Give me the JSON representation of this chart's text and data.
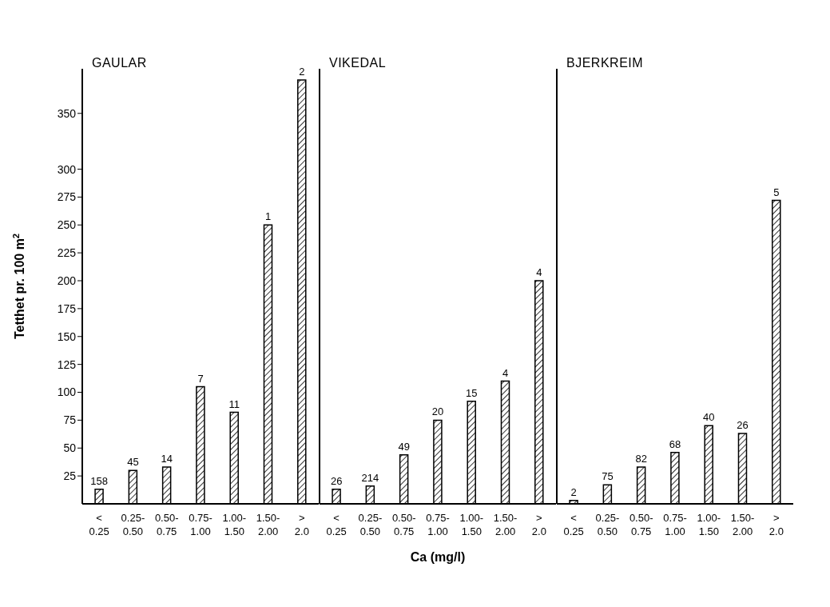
{
  "chart_data": [
    {
      "type": "bar",
      "title": "GAULAR",
      "ylabel": "Tetthet pr. 100 m$^{2}$",
      "categories": [
        "< 0.25",
        "0.25- 0.50",
        "0.50- 0.75",
        "0.75- 1.00",
        "1.00- 1.50",
        "1.50- 2.00",
        "> 2.0"
      ],
      "values": [
        13,
        30,
        33,
        105,
        82,
        250,
        380
      ],
      "color": "#000000",
      "ylim": [
        0,
        390
      ],
      "yticks": [
        25,
        50,
        75,
        100,
        125,
        150,
        175,
        200,
        225,
        250,
        275,
        300,
        350
      ],
      "annotations": [
        {
          "text": "158",
          "x": "< 0.25",
          "y": 13
        },
        {
          "text": "45",
          "x": "0.25- 0.50",
          "y": 30
        },
        {
          "text": "14",
          "x": "0.50- 0.75",
          "y": 33
        },
        {
          "text": "7",
          "x": "0.75- 1.00",
          "y": 105
        },
        {
          "text": "11",
          "x": "1.00- 1.50",
          "y": 82
        },
        {
          "text": "1",
          "x": "1.50- 2.00",
          "y": 250
        },
        {
          "text": "2",
          "x": "> 2.0",
          "y": 380
        }
      ]
    },
    {
      "type": "bar",
      "title": "VIKEDAL",
      "xlabel": "Ca (mg/l)",
      "categories": [
        "< 0.25",
        "0.25- 0.50",
        "0.50- 0.75",
        "0.75- 1.00",
        "1.00- 1.50",
        "1.50- 2.00",
        "> 2.0"
      ],
      "values": [
        13,
        16,
        44,
        75,
        92,
        110,
        200
      ],
      "color": "#000000",
      "ylim": [
        0,
        390
      ],
      "tick_labels": "x",
      "annotations": [
        {
          "text": "26",
          "x": "< 0.25",
          "y": 13
        },
        {
          "text": "214",
          "x": "0.25- 0.50",
          "y": 16
        },
        {
          "text": "49",
          "x": "0.50- 0.75",
          "y": 44
        },
        {
          "text": "20",
          "x": "0.75- 1.00",
          "y": 75
        },
        {
          "text": "15",
          "x": "1.00- 1.50",
          "y": 92
        },
        {
          "text": "4",
          "x": "1.50- 2.00",
          "y": 110
        },
        {
          "text": "4",
          "x": "> 2.0",
          "y": 200
        }
      ]
    },
    {
      "type": "bar",
      "title": "BJERKREIM",
      "categories": [
        "< 0.25",
        "0.25- 0.50",
        "0.50- 0.75",
        "0.75- 1.00",
        "1.00- 1.50",
        "1.50- 2.00",
        "> 2.0"
      ],
      "values": [
        3,
        17,
        33,
        46,
        70,
        63,
        272
      ],
      "color": "#000000",
      "ylim": [
        0,
        390
      ],
      "tick_labels": "x",
      "annotations": [
        {
          "text": "2",
          "x": "< 0.25",
          "y": 3
        },
        {
          "text": "75",
          "x": "0.25- 0.50",
          "y": 17
        },
        {
          "text": "82",
          "x": "0.50- 0.75",
          "y": 33
        },
        {
          "text": "68",
          "x": "0.75- 1.00",
          "y": 46
        },
        {
          "text": "40",
          "x": "1.00- 1.50",
          "y": 70
        },
        {
          "text": "26",
          "x": "1.50- 2.00",
          "y": 63
        },
        {
          "text": "5",
          "x": "> 2.0",
          "y": 272
        }
      ]
    }
  ]
}
